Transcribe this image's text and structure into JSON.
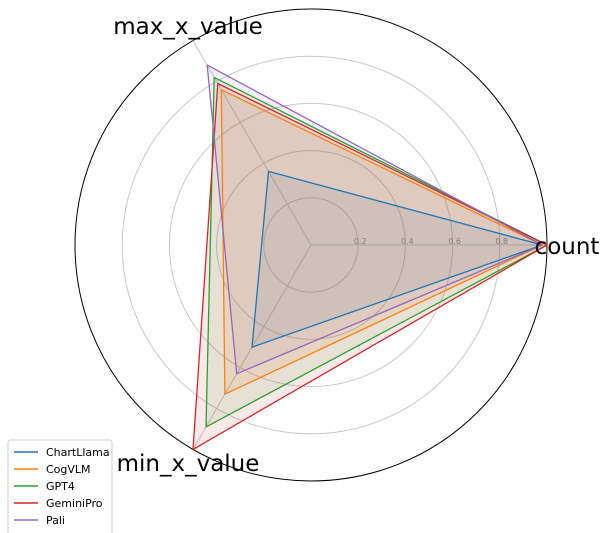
{
  "chart_data": {
    "type": "radar",
    "axes": [
      "count",
      "max_x_value",
      "min_x_value"
    ],
    "radial_ticks": [
      "0.2",
      "0.4",
      "0.6",
      "0.8"
    ],
    "rlim": [
      0,
      1
    ],
    "grid": true,
    "legend_position": "bottom-left",
    "series": [
      {
        "name": "ChartLlama",
        "color": "#1f77b4",
        "values": [
          0.98,
          0.36,
          0.5
        ]
      },
      {
        "name": "CogVLM",
        "color": "#ff7f0e",
        "values": [
          0.98,
          0.76,
          0.73
        ]
      },
      {
        "name": "GPT4",
        "color": "#2ca02c",
        "values": [
          1.0,
          0.82,
          0.89
        ]
      },
      {
        "name": "GeminiPro",
        "color": "#d62728",
        "values": [
          1.0,
          0.79,
          1.0
        ]
      },
      {
        "name": "Pali",
        "color": "#9467bd",
        "values": [
          0.98,
          0.88,
          0.63
        ]
      }
    ]
  }
}
